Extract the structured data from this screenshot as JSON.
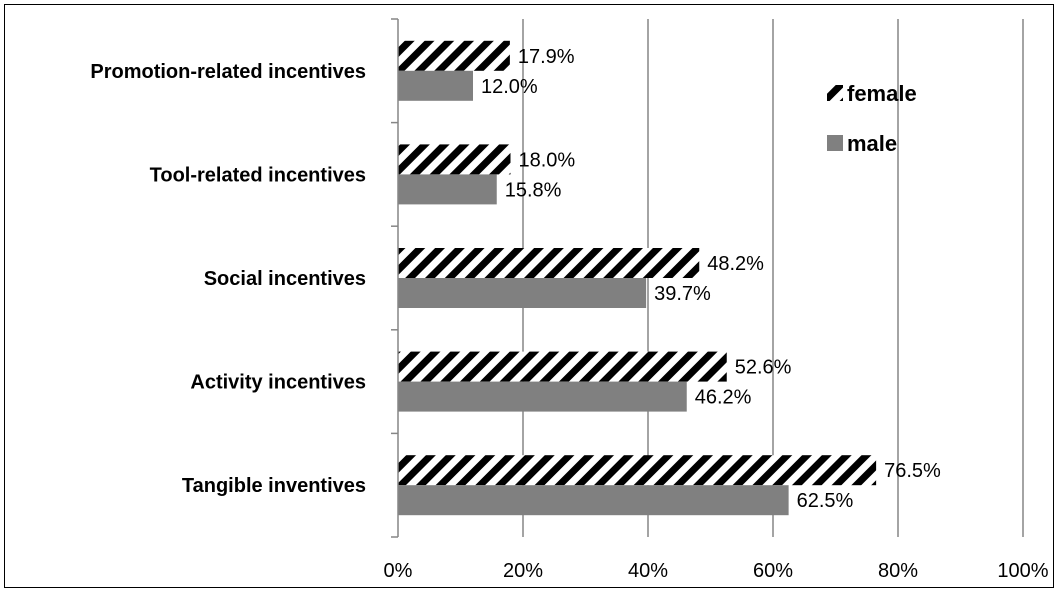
{
  "chart_data": {
    "type": "bar",
    "orientation": "horizontal",
    "categories": [
      "Promotion-related incentives",
      "Tool-related incentives",
      "Social incentives",
      "Activity incentives",
      "Tangible inventives"
    ],
    "series": [
      {
        "name": "female",
        "values": [
          17.9,
          18.0,
          48.2,
          52.6,
          76.5
        ],
        "labels": [
          "17.9%",
          "18.0%",
          "48.2%",
          "52.6%",
          "76.5%"
        ],
        "pattern": "diagonal-stripes",
        "color": "#000000"
      },
      {
        "name": "male",
        "values": [
          12.0,
          15.8,
          39.7,
          46.2,
          62.5
        ],
        "labels": [
          "12.0%",
          "15.8%",
          "39.7%",
          "46.2%",
          "62.5%"
        ],
        "pattern": "solid",
        "color": "#808080"
      }
    ],
    "xlim": [
      0,
      100
    ],
    "xticks": [
      0,
      20,
      40,
      60,
      80,
      100
    ],
    "xtick_labels": [
      "0%",
      "20%",
      "40%",
      "60%",
      "80%",
      "100%"
    ],
    "grid": "vertical",
    "legend": {
      "position": "right",
      "entries": [
        "female",
        "male"
      ]
    },
    "colors": {
      "gridline": "#868686",
      "axis": "#868686",
      "male": "#808080",
      "female_stripe": "#000000"
    }
  }
}
